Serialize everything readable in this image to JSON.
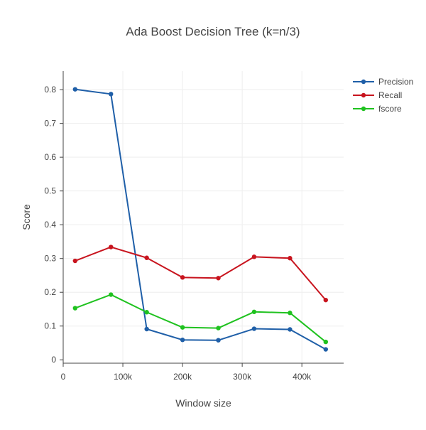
{
  "chart_data": {
    "type": "line",
    "title": "Ada Boost Decision Tree (k=n/3)",
    "xlabel": "Window size",
    "ylabel": "Score",
    "xlim": [
      0,
      470000
    ],
    "ylim": [
      -0.01,
      0.855
    ],
    "x_ticks": [
      0,
      100000,
      200000,
      300000,
      400000
    ],
    "x_tick_labels": [
      "0",
      "100k",
      "200k",
      "300k",
      "400k"
    ],
    "y_ticks": [
      0,
      0.1,
      0.2,
      0.3,
      0.4,
      0.5,
      0.6,
      0.7,
      0.8
    ],
    "y_tick_labels": [
      "0",
      "0.1",
      "0.2",
      "0.3",
      "0.4",
      "0.5",
      "0.6",
      "0.7",
      "0.8"
    ],
    "grid": true,
    "legend_position": "top-right",
    "x": [
      20000,
      80000,
      140000,
      200000,
      260000,
      320000,
      380000,
      440000
    ],
    "series": [
      {
        "name": "Precision",
        "color": "#1f5fa8",
        "values": [
          0.801,
          0.787,
          0.091,
          0.059,
          0.058,
          0.092,
          0.09,
          0.031
        ]
      },
      {
        "name": "Recall",
        "color": "#c8141e",
        "values": [
          0.293,
          0.334,
          0.302,
          0.244,
          0.242,
          0.305,
          0.301,
          0.177
        ]
      },
      {
        "name": "fscore",
        "color": "#1fc21f",
        "values": [
          0.153,
          0.193,
          0.141,
          0.096,
          0.094,
          0.142,
          0.139,
          0.053
        ]
      }
    ]
  }
}
